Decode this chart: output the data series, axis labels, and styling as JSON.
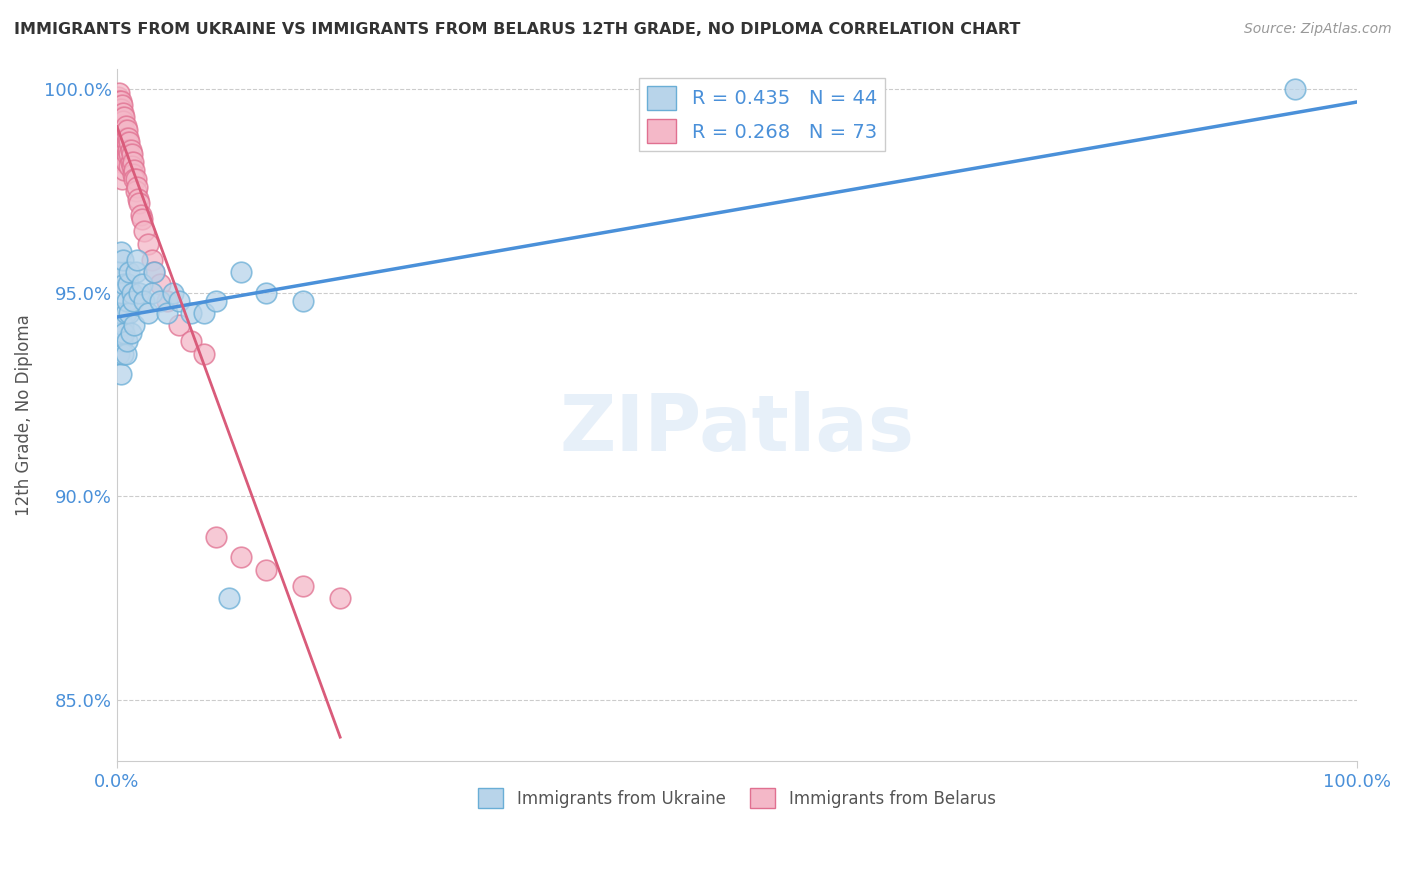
{
  "title": "IMMIGRANTS FROM UKRAINE VS IMMIGRANTS FROM BELARUS 12TH GRADE, NO DIPLOMA CORRELATION CHART",
  "source": "Source: ZipAtlas.com",
  "ylabel": "12th Grade, No Diploma",
  "x_label_ukraine": "Immigrants from Ukraine",
  "x_label_belarus": "Immigrants from Belarus",
  "xlim": [
    0,
    1.0
  ],
  "ylim": [
    0.835,
    1.005
  ],
  "yticks": [
    0.85,
    0.9,
    0.95,
    1.0
  ],
  "ytick_labels": [
    "85.0%",
    "90.0%",
    "95.0%",
    "100.0%"
  ],
  "ukraine_R": 0.435,
  "ukraine_N": 44,
  "belarus_R": 0.268,
  "belarus_N": 73,
  "ukraine_color": "#b8d4ea",
  "ukraine_edge_color": "#6aaed6",
  "belarus_color": "#f4b8c8",
  "belarus_edge_color": "#e07090",
  "ukraine_line_color": "#4a90d9",
  "belarus_line_color": "#d95b7a",
  "background_color": "#ffffff",
  "ukraine_x": [
    0.001,
    0.002,
    0.002,
    0.003,
    0.003,
    0.003,
    0.004,
    0.004,
    0.005,
    0.005,
    0.005,
    0.006,
    0.006,
    0.007,
    0.007,
    0.008,
    0.008,
    0.009,
    0.01,
    0.01,
    0.011,
    0.012,
    0.013,
    0.014,
    0.015,
    0.016,
    0.018,
    0.02,
    0.022,
    0.025,
    0.028,
    0.03,
    0.035,
    0.04,
    0.045,
    0.05,
    0.06,
    0.07,
    0.08,
    0.09,
    0.1,
    0.12,
    0.15,
    0.95
  ],
  "ukraine_y": [
    0.94,
    0.935,
    0.955,
    0.93,
    0.945,
    0.96,
    0.938,
    0.95,
    0.935,
    0.942,
    0.958,
    0.94,
    0.952,
    0.945,
    0.935,
    0.948,
    0.938,
    0.952,
    0.945,
    0.955,
    0.94,
    0.95,
    0.948,
    0.942,
    0.955,
    0.958,
    0.95,
    0.952,
    0.948,
    0.945,
    0.95,
    0.955,
    0.948,
    0.945,
    0.95,
    0.948,
    0.945,
    0.945,
    0.948,
    0.875,
    0.955,
    0.95,
    0.948,
    1.0
  ],
  "belarus_x": [
    0.001,
    0.001,
    0.001,
    0.002,
    0.002,
    0.002,
    0.002,
    0.002,
    0.003,
    0.003,
    0.003,
    0.003,
    0.003,
    0.003,
    0.003,
    0.004,
    0.004,
    0.004,
    0.004,
    0.004,
    0.004,
    0.004,
    0.005,
    0.005,
    0.005,
    0.005,
    0.005,
    0.006,
    0.006,
    0.006,
    0.006,
    0.006,
    0.007,
    0.007,
    0.007,
    0.007,
    0.008,
    0.008,
    0.008,
    0.009,
    0.009,
    0.01,
    0.01,
    0.01,
    0.011,
    0.011,
    0.012,
    0.012,
    0.013,
    0.013,
    0.014,
    0.014,
    0.015,
    0.015,
    0.016,
    0.017,
    0.018,
    0.019,
    0.02,
    0.022,
    0.025,
    0.028,
    0.03,
    0.035,
    0.04,
    0.05,
    0.06,
    0.07,
    0.08,
    0.1,
    0.12,
    0.15,
    0.18
  ],
  "belarus_y": [
    0.998,
    0.995,
    0.99,
    0.999,
    0.997,
    0.995,
    0.993,
    0.988,
    0.997,
    0.995,
    0.993,
    0.991,
    0.988,
    0.985,
    0.982,
    0.996,
    0.993,
    0.991,
    0.988,
    0.985,
    0.982,
    0.978,
    0.994,
    0.992,
    0.989,
    0.986,
    0.983,
    0.993,
    0.99,
    0.987,
    0.984,
    0.98,
    0.991,
    0.988,
    0.985,
    0.982,
    0.99,
    0.987,
    0.984,
    0.988,
    0.985,
    0.987,
    0.984,
    0.981,
    0.985,
    0.982,
    0.984,
    0.981,
    0.982,
    0.979,
    0.98,
    0.978,
    0.978,
    0.975,
    0.976,
    0.973,
    0.972,
    0.969,
    0.968,
    0.965,
    0.962,
    0.958,
    0.955,
    0.952,
    0.948,
    0.942,
    0.938,
    0.935,
    0.89,
    0.885,
    0.882,
    0.878,
    0.875
  ]
}
